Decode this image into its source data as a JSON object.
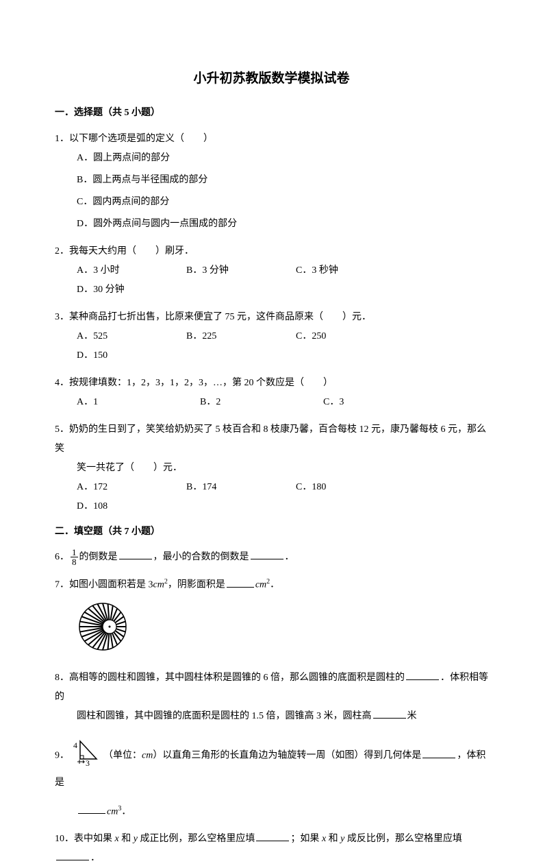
{
  "title": "小升初苏教版数学模拟试卷",
  "section1": {
    "header": "一．选择题（共 5 小题）",
    "q1": {
      "text": "1．以下哪个选项是弧的定义（　　）",
      "optA": "A．圆上两点间的部分",
      "optB": "B．圆上两点与半径围成的部分",
      "optC": "C．圆内两点间的部分",
      "optD": "D．圆外两点间与圆内一点围成的部分"
    },
    "q2": {
      "text": "2．我每天大约用（　　）刷牙．",
      "optA": "A．3 小时",
      "optB": "B．3 分钟",
      "optC": "C．3 秒钟",
      "optD": "D．30 分钟"
    },
    "q3": {
      "text": "3．某种商品打七折出售，比原来便宜了 75 元，这件商品原来（　　）元．",
      "optA": "A．525",
      "optB": "B．225",
      "optC": "C．250",
      "optD": "D．150"
    },
    "q4": {
      "text": "4．按规律填数：1，2，3，1，2，3，…，第 20 个数应是（　　）",
      "optA": "A．1",
      "optB": "B．2",
      "optC": "C．3"
    },
    "q5": {
      "text1": "5．奶奶的生日到了，笑笑给奶奶买了 5 枝百合和 8 枝康乃馨，百合每枝 12 元，康乃馨每枝 6 元，那么笑",
      "text2": "笑一共花了（　　）元．",
      "optA": "A．172",
      "optB": "B．174",
      "optC": "C．180",
      "optD": "D．108"
    }
  },
  "section2": {
    "header": "二．填空题（共 7 小题）",
    "q6": {
      "prefix": "6．",
      "frac_num": "1",
      "frac_den": "8",
      "text1": "的倒数是",
      "text2": "，最小的合数的倒数是",
      "text3": "．"
    },
    "q7": {
      "text1": "7．如图小圆面积若是 3",
      "unit1": "cm",
      "text2": "，阴影面积是",
      "unit2": "cm",
      "text3": "．"
    },
    "q8": {
      "text1": "8．高相等的圆柱和圆锥，其中圆柱体积是圆锥的 6 倍，那么圆锥的底面积是圆柱的",
      "text2": "．体积相等的",
      "text3": "圆柱和圆锥，其中圆锥的底面积是圆柱的 1.5 倍，圆锥高 3 米，圆柱高",
      "text4": "米"
    },
    "q9": {
      "prefix": "9．",
      "tri_v": "4",
      "tri_h": "3",
      "text1": "（单位：",
      "unit1": "cm",
      "text2": "）以直角三角形的长直角边为轴旋转一周（如图）得到几何体是",
      "text3": "，体积是",
      "unit2": "cm",
      "text4": "．"
    },
    "q10": {
      "text1": "10．表中如果 ",
      "var_x": "x",
      "text2": " 和 ",
      "var_y": "y",
      "text3": " 成正比例，那么空格里应填",
      "text4": "；如果 ",
      "text5": " 成反比例，那么空格里应填",
      "text6": "．"
    }
  },
  "figures": {
    "circle": {
      "outer_r": 34,
      "inner_r": 10,
      "stroke": "#000000",
      "fill_bg": "#ffffff",
      "dot_r": 1.5,
      "line_count": 28
    },
    "triangle": {
      "width": 36,
      "height": 34,
      "stroke": "#000000"
    }
  }
}
